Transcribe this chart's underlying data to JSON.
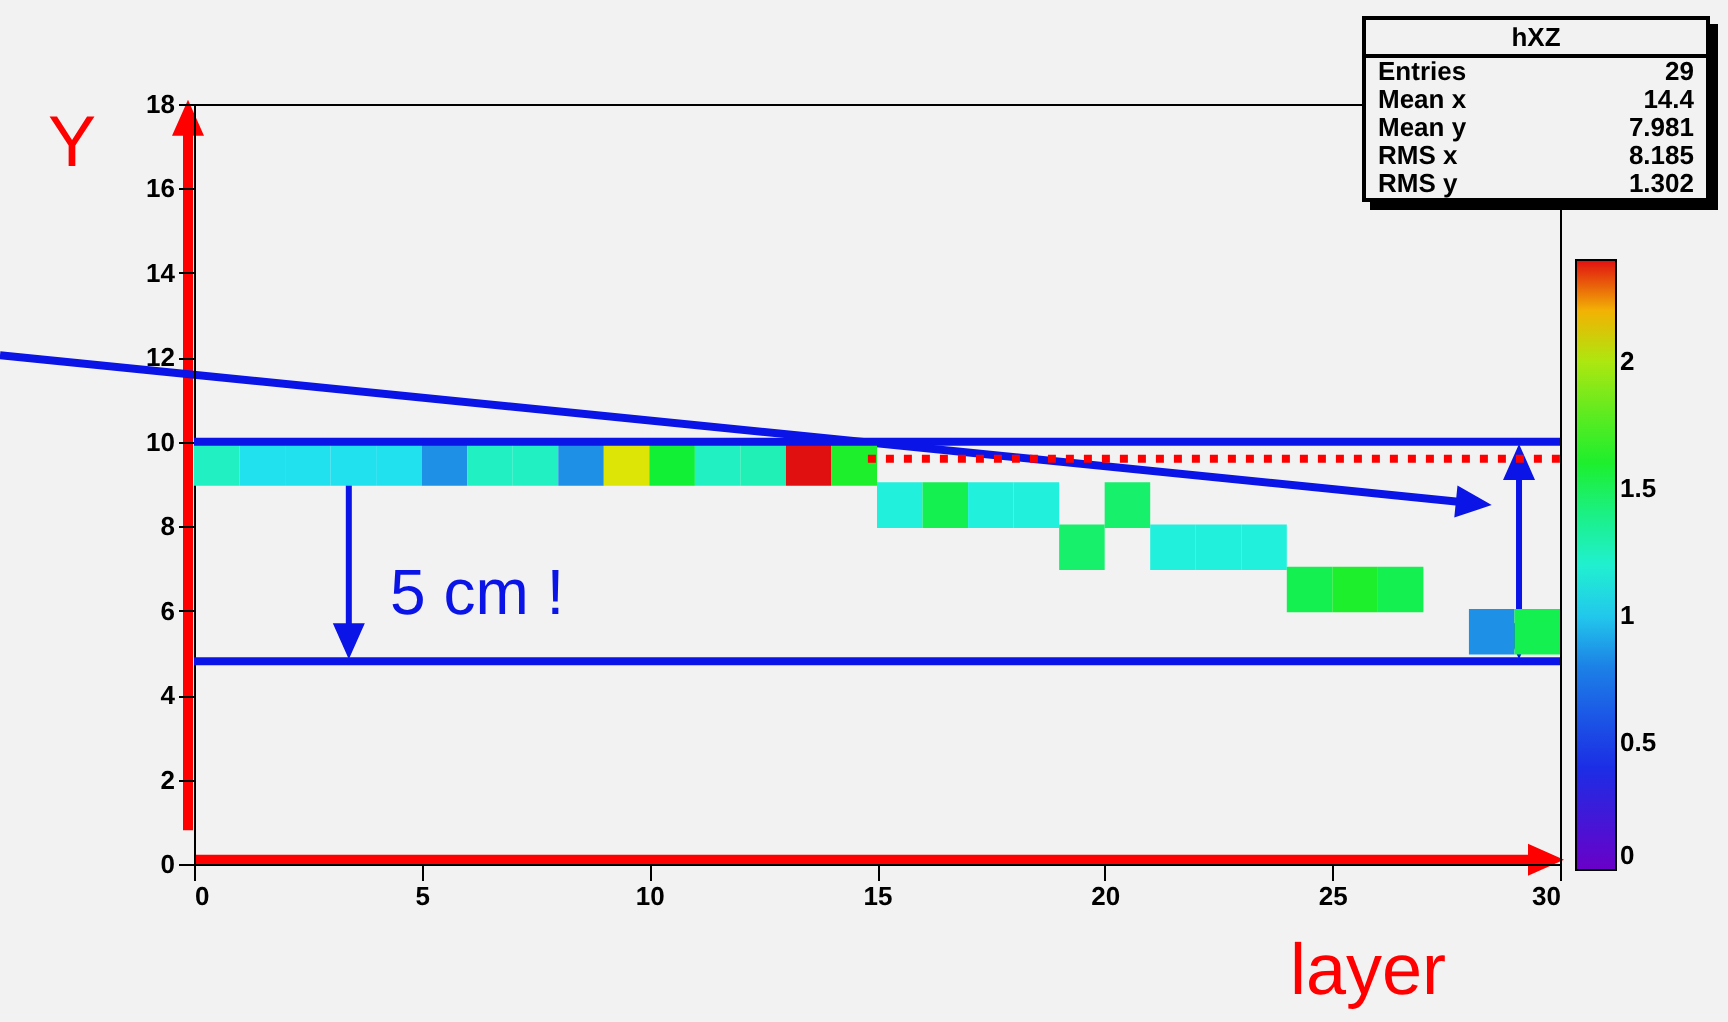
{
  "chart_data": {
    "type": "scatter",
    "xlabel": "layer",
    "ylabel": "Y",
    "marker": "square",
    "xlim": [
      0,
      30
    ],
    "xticks": [
      0,
      5,
      10,
      15,
      20,
      25,
      30
    ],
    "ylim": [
      0,
      18
    ],
    "yticks": [
      0,
      2,
      4,
      6,
      8,
      10,
      12,
      14,
      16,
      18
    ],
    "clim": [
      0,
      2.4
    ],
    "cticks": [
      0,
      0.5,
      1,
      1.5,
      2
    ],
    "x": [
      0.5,
      1.5,
      2.5,
      3.5,
      4.5,
      5.5,
      6.5,
      7.5,
      8.5,
      9.5,
      10.5,
      11.5,
      12.5,
      13.5,
      14.5,
      15.5,
      16.5,
      17.5,
      18.5,
      20.5,
      19.5,
      21.5,
      22.5,
      23.5,
      24.5,
      25.5,
      26.5,
      28.5,
      29.5
    ],
    "values": [
      9.5,
      9.5,
      9.5,
      9.5,
      9.5,
      9.5,
      9.5,
      9.5,
      9.5,
      9.5,
      9.5,
      9.5,
      9.5,
      9.5,
      9.5,
      8.5,
      8.5,
      8.5,
      8.5,
      8.5,
      7.5,
      7.5,
      7.5,
      7.5,
      6.5,
      6.5,
      6.5,
      5.5,
      5.5
    ],
    "cvalues": [
      1.25,
      1.05,
      1.05,
      1.05,
      1.05,
      0.85,
      1.25,
      1.25,
      0.85,
      2.1,
      1.55,
      1.25,
      1.3,
      2.4,
      1.6,
      1.15,
      1.5,
      1.15,
      1.15,
      1.45,
      1.45,
      1.15,
      1.15,
      1.15,
      1.5,
      1.6,
      1.5,
      0.85,
      1.5
    ],
    "colors": [
      "#21f0c3",
      "#22e1ee",
      "#22e1ee",
      "#22e1ee",
      "#22e1ee",
      "#1e91e7",
      "#21f0c3",
      "#21f0c3",
      "#1e91e7",
      "#dce506",
      "#11f035",
      "#21f0c3",
      "#20f0b5",
      "#e01010",
      "#1def2d",
      "#21f0dd",
      "#14f050",
      "#21f0dd",
      "#21f0dd",
      "#17f06b",
      "#17f06b",
      "#21f0dd",
      "#21f0dd",
      "#21f0dd",
      "#14f050",
      "#1def2d",
      "#14f050",
      "#1e91e7",
      "#14f050"
    ],
    "series": [
      {
        "type": "line",
        "marker": "none",
        "color": "#ff0000",
        "line_style": "dotted",
        "x": [
          14.8,
          30
        ],
        "values": [
          9.6,
          9.6
        ]
      }
    ],
    "ref_lines": [
      {
        "axis": "y",
        "value": 10,
        "color": "#0a14e6"
      },
      {
        "axis": "y",
        "value": 4.8,
        "color": "#0a14e6"
      }
    ],
    "annotations": [
      "hXZ",
      "Entries",
      "29",
      "Mean x",
      "14.4",
      "Mean y",
      "7.981",
      "RMS x",
      "8.185",
      "RMS y",
      "1.302",
      "5 cm !"
    ]
  }
}
